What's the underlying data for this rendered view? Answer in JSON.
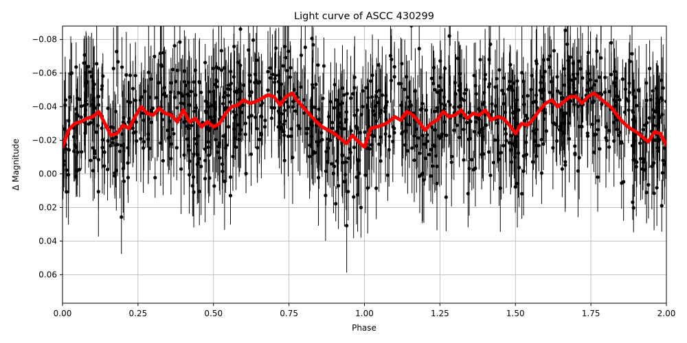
{
  "chart_data": {
    "type": "scatter",
    "title": "Light curve of ASCC 430299",
    "xlabel": "Phase",
    "ylabel": "Δ Magnitude",
    "xlim": [
      0.0,
      2.0
    ],
    "ylim": [
      0.077,
      -0.088
    ],
    "y_inverted": true,
    "grid": true,
    "x_ticks": [
      "0.00",
      "0.25",
      "0.50",
      "0.75",
      "1.00",
      "1.25",
      "1.50",
      "1.75",
      "2.00"
    ],
    "y_ticks": [
      "−0.08",
      "−0.06",
      "−0.04",
      "−0.02",
      "0.00",
      "0.02",
      "0.04",
      "0.06"
    ],
    "x_tick_values": [
      0.0,
      0.25,
      0.5,
      0.75,
      1.0,
      1.25,
      1.5,
      1.75,
      2.0
    ],
    "y_tick_values": [
      -0.08,
      -0.06,
      -0.04,
      -0.02,
      0.0,
      0.02,
      0.04,
      0.06
    ],
    "observations": {
      "marker_color": "#000000",
      "errorbar_color": "#000000",
      "phase_range": [
        0.0,
        2.0
      ],
      "scatter_sigma": 0.032,
      "typical_error": 0.02
    },
    "model_curve": {
      "color": "#ff0000",
      "x": [
        0.0,
        0.02,
        0.04,
        0.06,
        0.08,
        0.1,
        0.12,
        0.14,
        0.16,
        0.18,
        0.2,
        0.22,
        0.24,
        0.26,
        0.28,
        0.3,
        0.32,
        0.34,
        0.36,
        0.38,
        0.4,
        0.42,
        0.44,
        0.46,
        0.48,
        0.5,
        0.52,
        0.54,
        0.56,
        0.58,
        0.6,
        0.62,
        0.64,
        0.66,
        0.68,
        0.7,
        0.72,
        0.74,
        0.76,
        0.78,
        0.8,
        0.82,
        0.84,
        0.86,
        0.88,
        0.9,
        0.92,
        0.94,
        0.96,
        0.98,
        1.0,
        1.02,
        1.04,
        1.06,
        1.08,
        1.1,
        1.12,
        1.14,
        1.16,
        1.18,
        1.2,
        1.22,
        1.24,
        1.26,
        1.28,
        1.3,
        1.32,
        1.34,
        1.36,
        1.38,
        1.4,
        1.42,
        1.44,
        1.46,
        1.48,
        1.5,
        1.52,
        1.54,
        1.56,
        1.58,
        1.6,
        1.62,
        1.64,
        1.66,
        1.68,
        1.7,
        1.72,
        1.74,
        1.76,
        1.78,
        1.8,
        1.82,
        1.84,
        1.86,
        1.88,
        1.9,
        1.92,
        1.94,
        1.96,
        1.98,
        2.0
      ],
      "y": [
        -0.016,
        -0.026,
        -0.03,
        -0.031,
        -0.033,
        -0.034,
        -0.037,
        -0.03,
        -0.023,
        -0.024,
        -0.029,
        -0.027,
        -0.034,
        -0.04,
        -0.036,
        -0.035,
        -0.039,
        -0.036,
        -0.035,
        -0.031,
        -0.038,
        -0.031,
        -0.033,
        -0.028,
        -0.031,
        -0.028,
        -0.03,
        -0.036,
        -0.04,
        -0.041,
        -0.044,
        -0.042,
        -0.043,
        -0.045,
        -0.047,
        -0.046,
        -0.041,
        -0.046,
        -0.048,
        -0.043,
        -0.039,
        -0.035,
        -0.031,
        -0.028,
        -0.026,
        -0.024,
        -0.021,
        -0.018,
        -0.023,
        -0.019,
        -0.016,
        -0.027,
        -0.028,
        -0.029,
        -0.031,
        -0.034,
        -0.032,
        -0.037,
        -0.035,
        -0.031,
        -0.026,
        -0.03,
        -0.032,
        -0.037,
        -0.034,
        -0.035,
        -0.038,
        -0.033,
        -0.036,
        -0.035,
        -0.038,
        -0.032,
        -0.034,
        -0.033,
        -0.029,
        -0.024,
        -0.03,
        -0.029,
        -0.033,
        -0.038,
        -0.042,
        -0.044,
        -0.04,
        -0.043,
        -0.046,
        -0.046,
        -0.042,
        -0.046,
        -0.048,
        -0.045,
        -0.042,
        -0.039,
        -0.034,
        -0.03,
        -0.027,
        -0.025,
        -0.022,
        -0.019,
        -0.025,
        -0.024,
        -0.017
      ]
    }
  }
}
